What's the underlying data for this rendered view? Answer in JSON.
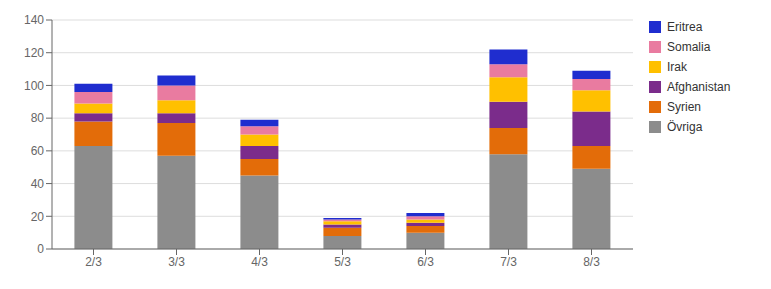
{
  "chart_data": {
    "type": "bar",
    "stacked": true,
    "categories": [
      "2/3",
      "3/3",
      "4/3",
      "5/3",
      "6/3",
      "7/3",
      "8/3"
    ],
    "series": [
      {
        "name": "Övriga",
        "color": "#8C8C8C",
        "values": [
          63,
          57,
          45,
          8,
          10,
          58,
          49
        ]
      },
      {
        "name": "Syrien",
        "color": "#E36C09",
        "values": [
          15,
          20,
          10,
          5,
          4,
          16,
          14
        ]
      },
      {
        "name": "Afghanistan",
        "color": "#7B2C8B",
        "values": [
          5,
          6,
          8,
          2,
          2,
          16,
          21
        ]
      },
      {
        "name": "Irak",
        "color": "#FFC000",
        "values": [
          6,
          8,
          7,
          2,
          2,
          15,
          13
        ]
      },
      {
        "name": "Somalia",
        "color": "#E97BA0",
        "values": [
          7,
          9,
          5,
          1,
          2,
          8,
          7
        ]
      },
      {
        "name": "Eritrea",
        "color": "#1F2DCF",
        "values": [
          5,
          6,
          4,
          1,
          2,
          9,
          5
        ]
      }
    ],
    "ylim": [
      0,
      140
    ],
    "yticks": [
      0,
      20,
      40,
      60,
      80,
      100,
      120,
      140
    ],
    "grid": true,
    "legend": "right"
  }
}
